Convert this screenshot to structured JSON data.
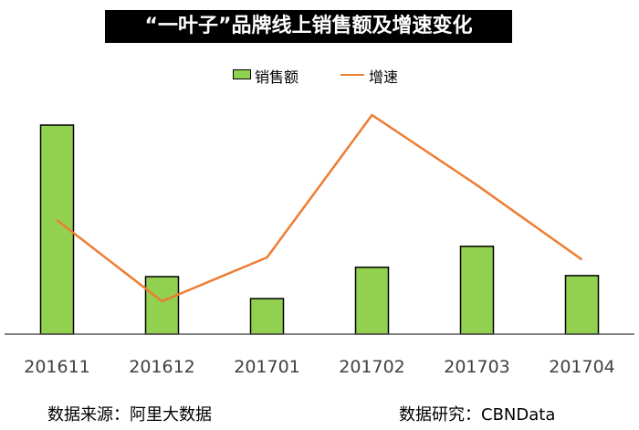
{
  "title": "“一叶子”品牌线上销售额及增速变化",
  "legend": {
    "bar_label": "销售额",
    "line_label": "增速"
  },
  "footer": {
    "source": "数据来源：阿里大数据",
    "research": "数据研究：CBNData"
  },
  "colors": {
    "bar": "#92d050",
    "line": "#ed7d31",
    "title_bg": "#000000"
  },
  "chart_data": {
    "type": "bar",
    "categories": [
      "201611",
      "201612",
      "201701",
      "201702",
      "201703",
      "201704"
    ],
    "series": [
      {
        "name": "销售额",
        "type": "bar",
        "values": [
          100,
          27.5,
          17,
          32,
          42,
          28
        ]
      },
      {
        "name": "增速",
        "type": "line",
        "values": [
          52,
          15,
          35,
          100,
          68,
          34
        ]
      }
    ],
    "ylim": [
      0,
      100
    ],
    "grid": false,
    "legend_position": "top-center"
  }
}
